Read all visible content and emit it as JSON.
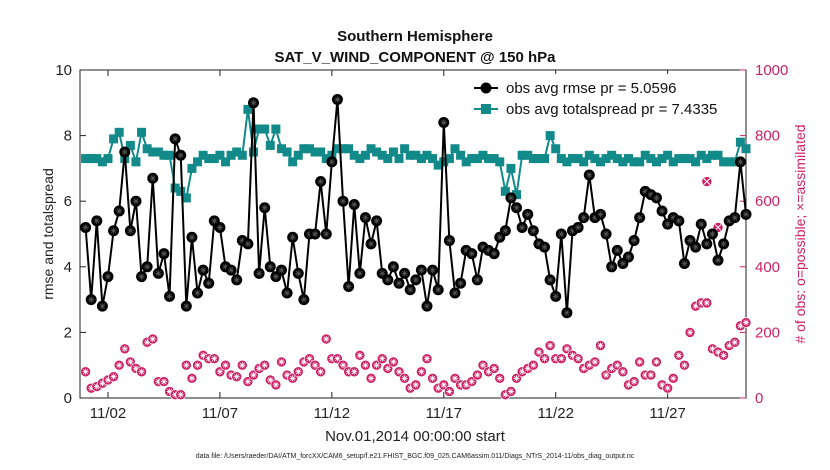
{
  "chart_data": {
    "type": "line",
    "title": [
      "Southern Hemisphere",
      "SAT_V_WIND_COMPONENT @ 150 hPa"
    ],
    "xlabel": "Nov.01,2014 00:00:00 start",
    "ylabel": "rmse and totalspread",
    "ylabel_right": "# of obs: o=possible; ×=assimilated",
    "ylim": [
      0,
      10
    ],
    "ylim_right": [
      0,
      1000
    ],
    "yticks": [
      "0",
      "2",
      "4",
      "6",
      "8",
      "10"
    ],
    "yticks_right": [
      "0",
      "200",
      "400",
      "600",
      "800",
      "1000"
    ],
    "xlim": [
      0.75,
      30.5
    ],
    "xticks": [
      {
        "x": 2,
        "label": "11/02"
      },
      {
        "x": 7,
        "label": "11/07"
      },
      {
        "x": 12,
        "label": "11/12"
      },
      {
        "x": 17,
        "label": "11/17"
      },
      {
        "x": 22,
        "label": "11/22"
      },
      {
        "x": 27,
        "label": "11/27"
      }
    ],
    "grid": false,
    "legend_position": "top-right",
    "colors": {
      "rmse": "#000000",
      "spread": "#128a8a",
      "obs": "#cc2266"
    },
    "footer": "data file: /Users/raeder/DAI/ATM_forcXX/CAM6_setup/f.e21.FHIST_BGC.f09_025.CAM6assim.011/Diags_NTrS_2014-11/obs_diag_output.nc",
    "series": [
      {
        "name": "obs avg rmse pr = 5.0596",
        "x0": 1.0,
        "dx": 0.25,
        "values": [
          5.2,
          3.0,
          5.4,
          2.8,
          3.7,
          5.1,
          5.7,
          7.5,
          5.1,
          6.0,
          3.7,
          4.0,
          6.7,
          3.8,
          4.4,
          3.1,
          7.9,
          7.4,
          2.8,
          4.9,
          3.2,
          3.9,
          3.5,
          5.4,
          5.2,
          4.0,
          3.9,
          3.6,
          4.8,
          4.7,
          9.0,
          3.8,
          5.8,
          4.0,
          3.7,
          3.9,
          3.2,
          4.9,
          3.8,
          3.0,
          5.0,
          5.0,
          6.6,
          5.0,
          7.2,
          9.1,
          6.0,
          3.4,
          5.9,
          3.8,
          5.5,
          4.7,
          5.4,
          3.8,
          3.6,
          4.0,
          3.5,
          3.8,
          3.3,
          3.6,
          3.9,
          2.8,
          3.9,
          3.3,
          8.4,
          4.8,
          3.2,
          3.5,
          4.5,
          4.4,
          3.6,
          4.6,
          4.5,
          4.4,
          4.9,
          5.1,
          6.1,
          5.8,
          5.2,
          5.6,
          5.1,
          4.7,
          4.6,
          3.6,
          3.1,
          5.0,
          2.6,
          5.1,
          5.2,
          5.5,
          6.8,
          5.5,
          5.6,
          5.0,
          4.0,
          4.5,
          4.1,
          4.3,
          4.8,
          5.5,
          6.3,
          6.2,
          6.1,
          5.7,
          5.3,
          5.5,
          5.4,
          4.1,
          4.8,
          4.6,
          5.3,
          4.7,
          5.0,
          4.2,
          4.7,
          5.4,
          5.5,
          7.2,
          5.6
        ]
      },
      {
        "name": "obs avg totalspread pr = 7.4335",
        "x0": 1.0,
        "dx": 0.25,
        "values": [
          7.3,
          7.3,
          7.3,
          7.2,
          7.3,
          7.9,
          8.1,
          7.3,
          7.7,
          7.2,
          8.1,
          7.6,
          7.5,
          7.5,
          7.4,
          7.4,
          6.4,
          6.3,
          6.1,
          7.0,
          7.2,
          7.4,
          7.3,
          7.3,
          7.4,
          7.2,
          7.4,
          7.5,
          7.4,
          8.8,
          7.5,
          8.2,
          8.2,
          7.7,
          8.2,
          7.6,
          7.5,
          7.2,
          7.4,
          7.6,
          7.6,
          7.5,
          7.5,
          7.3,
          7.4,
          7.6,
          7.6,
          7.6,
          7.4,
          7.3,
          7.4,
          7.6,
          7.5,
          7.4,
          7.3,
          7.5,
          7.3,
          7.6,
          7.4,
          7.4,
          7.3,
          7.4,
          7.3,
          7.1,
          7.2,
          7.3,
          7.6,
          7.4,
          7.2,
          7.3,
          7.3,
          7.4,
          7.3,
          7.3,
          7.2,
          6.3,
          7.0,
          6.2,
          7.4,
          7.4,
          7.3,
          7.3,
          7.3,
          8.0,
          7.6,
          7.3,
          7.2,
          7.3,
          7.3,
          7.2,
          7.4,
          7.3,
          7.2,
          7.3,
          7.4,
          7.3,
          7.2,
          7.3,
          7.2,
          7.2,
          7.4,
          7.3,
          7.2,
          7.3,
          7.4,
          7.2,
          7.3,
          7.3,
          7.3,
          7.2,
          7.4,
          7.3,
          7.4,
          7.4,
          7.2,
          7.2,
          7.2,
          7.8,
          7.6
        ]
      },
      {
        "name": "# of obs possible",
        "marker": "o",
        "x0": 1.0,
        "dx": 0.25,
        "values": [
          80,
          30,
          35,
          45,
          55,
          65,
          100,
          150,
          110,
          90,
          80,
          170,
          180,
          50,
          50,
          20,
          10,
          10,
          100,
          60,
          100,
          130,
          120,
          120,
          80,
          100,
          70,
          65,
          100,
          50,
          70,
          90,
          100,
          55,
          40,
          110,
          70,
          60,
          80,
          110,
          120,
          100,
          80,
          180,
          120,
          120,
          100,
          80,
          80,
          130,
          100,
          60,
          100,
          120,
          90,
          110,
          80,
          60,
          30,
          40,
          80,
          120,
          60,
          30,
          40,
          20,
          60,
          40,
          40,
          50,
          70,
          100,
          80,
          90,
          60,
          10,
          20,
          60,
          80,
          90,
          100,
          140,
          120,
          160,
          120,
          120,
          150,
          130,
          120,
          90,
          100,
          110,
          160,
          70,
          90,
          100,
          80,
          40,
          50,
          110,
          70,
          70,
          110,
          40,
          30,
          60,
          130,
          100,
          200,
          280,
          290,
          290,
          150,
          140,
          130,
          160,
          170,
          220,
          230
        ]
      },
      {
        "name": "# of obs assimilated",
        "marker": "x",
        "points": [
          [
            28.75,
            660
          ],
          [
            29.25,
            520
          ]
        ]
      }
    ]
  }
}
